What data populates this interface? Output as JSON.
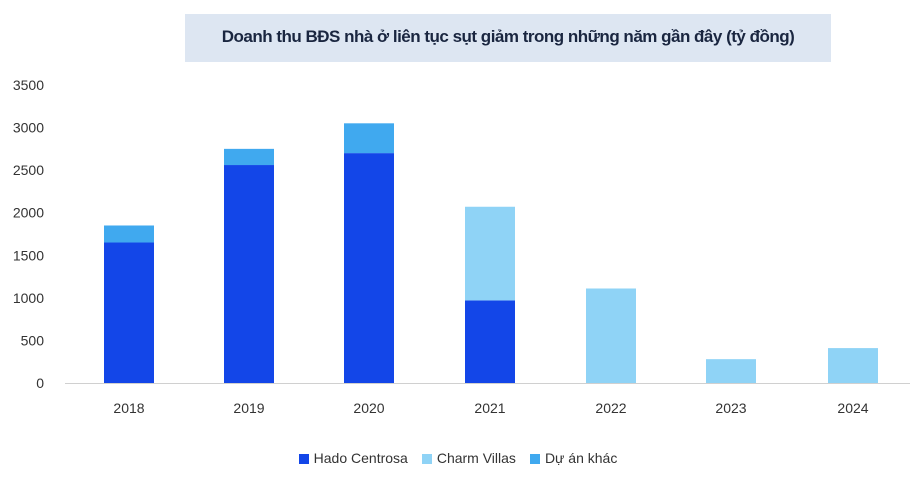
{
  "chart_data": {
    "type": "bar",
    "stacked": true,
    "title": "Doanh thu BĐS nhà ở liên tục sụt giảm trong những năm gần đây (tỷ đồng)",
    "categories": [
      "2018",
      "2019",
      "2020",
      "2021",
      "2022",
      "2023",
      "2024"
    ],
    "series": [
      {
        "name": "Hado Centrosa",
        "color": "#1346e8",
        "values": [
          1650,
          2560,
          2700,
          970,
          0,
          0,
          0
        ]
      },
      {
        "name": "Charm Villas",
        "color": "#8fd3f6",
        "values": [
          0,
          0,
          0,
          1100,
          1110,
          280,
          410
        ]
      },
      {
        "name": "Dự án khác",
        "color": "#40a9ef",
        "values": [
          200,
          190,
          350,
          0,
          0,
          0,
          0
        ]
      }
    ],
    "ylim": [
      0,
      3500
    ],
    "yticks": [
      0,
      500,
      1000,
      1500,
      2000,
      2500,
      3000,
      3500
    ],
    "grid": false,
    "legend": "bottom"
  }
}
